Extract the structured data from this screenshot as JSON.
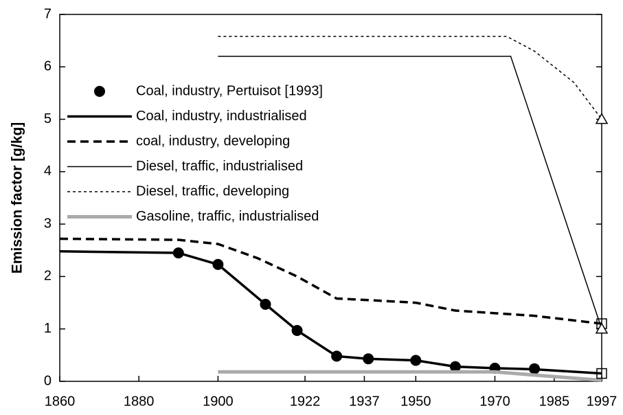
{
  "chart_data": {
    "type": "line",
    "ylabel": "Emission factor [g/kg]",
    "xlim": [
      1860,
      1997
    ],
    "xticks": [
      1860,
      1880,
      1900,
      1922,
      1937,
      1950,
      1970,
      1985,
      1997
    ],
    "ylim": [
      0,
      7
    ],
    "yticks": [
      0,
      1,
      2,
      3,
      4,
      5,
      6,
      7
    ],
    "grid": false,
    "legend": "upper left",
    "series": [
      {
        "name": "Coal, industry, Pertuisot [1993]",
        "color": "#000000",
        "style": "dots",
        "x": [
          1890,
          1900,
          1912,
          1920,
          1930,
          1938,
          1950,
          1960,
          1970,
          1980
        ],
        "values": [
          2.45,
          2.23,
          1.47,
          0.97,
          0.48,
          0.43,
          0.4,
          0.28,
          0.25,
          0.24
        ]
      },
      {
        "name": "Coal, industry, industrialised",
        "color": "#000000",
        "style": "thick",
        "x": [
          1860,
          1890,
          1900,
          1912,
          1920,
          1930,
          1938,
          1950,
          1960,
          1970,
          1980,
          1997
        ],
        "values": [
          2.48,
          2.45,
          2.23,
          1.47,
          0.97,
          0.48,
          0.43,
          0.4,
          0.28,
          0.25,
          0.23,
          0.15
        ]
      },
      {
        "name": "coal, industry, developing",
        "color": "#000000",
        "style": "dashed",
        "x": [
          1860,
          1890,
          1900,
          1910,
          1920,
          1930,
          1938,
          1950,
          1960,
          1970,
          1980,
          1997
        ],
        "values": [
          2.72,
          2.7,
          2.62,
          2.35,
          2.0,
          1.58,
          1.55,
          1.5,
          1.35,
          1.3,
          1.25,
          1.1
        ]
      },
      {
        "name": "Diesel, traffic, industrialised",
        "color": "#000000",
        "style": "thin",
        "x": [
          1900,
          1974,
          1997
        ],
        "values": [
          6.2,
          6.2,
          1.0
        ]
      },
      {
        "name": "Diesel, traffic, developing",
        "color": "#000000",
        "style": "dotted",
        "x": [
          1900,
          1973,
          1980,
          1990,
          1997
        ],
        "values": [
          6.58,
          6.58,
          6.3,
          5.7,
          5.0
        ]
      },
      {
        "name": "Gasoline, traffic, industrialised",
        "color": "#aaaaaa",
        "style": "gray",
        "x": [
          1900,
          1970,
          1980,
          1997
        ],
        "values": [
          0.18,
          0.18,
          0.12,
          0.02
        ]
      }
    ],
    "end_markers": [
      {
        "shape": "triangle",
        "x": 1997,
        "y": 5.0
      },
      {
        "shape": "square",
        "x": 1997,
        "y": 1.1
      },
      {
        "shape": "triangle",
        "x": 1997,
        "y": 1.0
      },
      {
        "shape": "square",
        "x": 1997,
        "y": 0.15
      }
    ]
  }
}
